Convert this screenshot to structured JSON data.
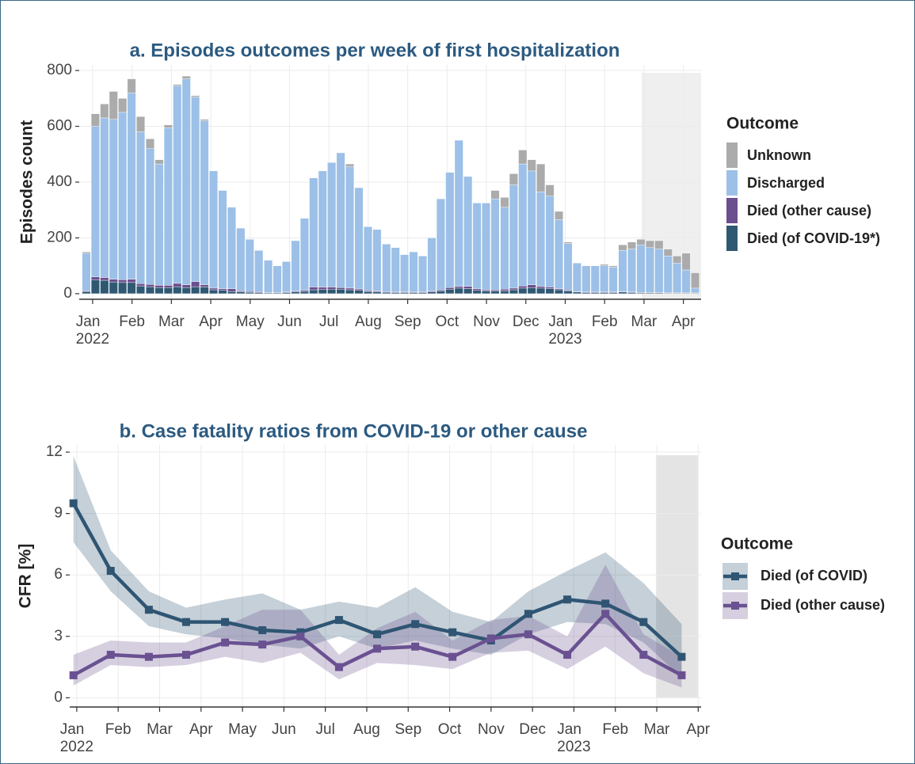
{
  "chart_data": [
    {
      "type": "bar",
      "stacked": true,
      "title": "a. Episodes outcomes per week of first hospitalization",
      "y_label": "Episodes count",
      "legend_title": "Outcome",
      "x": [
        -0.16,
        0.07,
        0.3,
        0.53,
        0.76,
        0.99,
        1.22,
        1.46,
        1.69,
        1.92,
        2.15,
        2.38,
        2.61,
        2.84,
        3.07,
        3.3,
        3.53,
        3.76,
        3.99,
        4.22,
        4.46,
        4.69,
        4.92,
        5.15,
        5.38,
        5.61,
        5.84,
        6.07,
        6.3,
        6.53,
        6.76,
        6.99,
        7.22,
        7.46,
        7.69,
        7.92,
        8.15,
        8.38,
        8.61,
        8.84,
        9.07,
        9.3,
        9.53,
        9.76,
        9.99,
        10.22,
        10.46,
        10.69,
        10.92,
        11.15,
        11.38,
        11.61,
        11.84,
        12.07,
        12.3,
        12.53,
        12.76,
        12.99,
        13.22,
        13.46,
        13.69,
        13.92,
        14.15,
        14.38,
        14.61,
        14.84,
        15.07,
        15.3
      ],
      "xlim": [
        -0.34,
        15.45
      ],
      "xticks": [
        {
          "value": 0,
          "label": "Jan\n2022"
        },
        {
          "value": 1,
          "label": "Feb"
        },
        {
          "value": 2,
          "label": "Mar"
        },
        {
          "value": 3,
          "label": "Apr"
        },
        {
          "value": 4,
          "label": "May"
        },
        {
          "value": 5,
          "label": "Jun"
        },
        {
          "value": 6,
          "label": "Jul"
        },
        {
          "value": 7,
          "label": "Aug"
        },
        {
          "value": 8,
          "label": "Sep"
        },
        {
          "value": 9,
          "label": "Oct"
        },
        {
          "value": 10,
          "label": "Nov"
        },
        {
          "value": 11,
          "label": "Dec"
        },
        {
          "value": 12,
          "label": "Jan\n2023"
        },
        {
          "value": 13,
          "label": "Feb"
        },
        {
          "value": 14,
          "label": "Mar"
        },
        {
          "value": 15,
          "label": "Apr"
        }
      ],
      "ylim": [
        -20,
        820
      ],
      "yticks": [
        0,
        200,
        400,
        600,
        800
      ],
      "grid": true,
      "series": [
        {
          "name": "Died (of COVID-19*)",
          "color": "#2f5873",
          "values": [
            8,
            50,
            48,
            42,
            40,
            40,
            28,
            25,
            22,
            22,
            25,
            22,
            25,
            24,
            14,
            12,
            8,
            6,
            5,
            4,
            3,
            3,
            4,
            6,
            8,
            14,
            15,
            16,
            16,
            14,
            12,
            8,
            6,
            5,
            4,
            4,
            4,
            4,
            6,
            10,
            16,
            20,
            18,
            12,
            10,
            10,
            10,
            14,
            20,
            22,
            20,
            18,
            14,
            10,
            6,
            4,
            4,
            4,
            4,
            6,
            4,
            3,
            3,
            3,
            2,
            2,
            2,
            2
          ]
        },
        {
          "name": "Died (other cause)",
          "color": "#6c4f8e",
          "values": [
            2,
            10,
            10,
            10,
            10,
            12,
            8,
            8,
            8,
            8,
            12,
            10,
            18,
            8,
            6,
            6,
            10,
            4,
            3,
            3,
            2,
            2,
            2,
            3,
            4,
            10,
            8,
            8,
            6,
            6,
            5,
            3,
            3,
            2,
            2,
            2,
            2,
            2,
            3,
            4,
            6,
            6,
            8,
            6,
            4,
            4,
            6,
            6,
            8,
            10,
            6,
            6,
            4,
            3,
            2,
            2,
            2,
            2,
            2,
            2,
            2,
            2,
            2,
            2,
            2,
            2,
            2,
            1
          ]
        },
        {
          "name": "Discharged",
          "color": "#9cc0e7",
          "values": [
            135,
            540,
            572,
            573,
            600,
            668,
            544,
            487,
            435,
            565,
            708,
            738,
            662,
            588,
            420,
            352,
            292,
            225,
            187,
            148,
            115,
            95,
            109,
            181,
            258,
            391,
            417,
            446,
            483,
            435,
            363,
            229,
            221,
            171,
            159,
            134,
            144,
            129,
            191,
            326,
            413,
            524,
            394,
            307,
            311,
            326,
            294,
            370,
            437,
            408,
            339,
            326,
            247,
            167,
            102,
            94,
            94,
            94,
            89,
            147,
            154,
            170,
            160,
            155,
            131,
            106,
            81,
            17
          ]
        },
        {
          "name": "Unknown",
          "color": "#ababab",
          "values": [
            5,
            45,
            50,
            100,
            50,
            50,
            55,
            35,
            15,
            10,
            5,
            10,
            5,
            5,
            0,
            0,
            0,
            0,
            0,
            0,
            0,
            0,
            0,
            0,
            0,
            0,
            0,
            0,
            0,
            10,
            0,
            0,
            0,
            0,
            0,
            0,
            0,
            0,
            0,
            0,
            0,
            0,
            0,
            0,
            0,
            30,
            35,
            40,
            50,
            40,
            100,
            40,
            30,
            5,
            0,
            0,
            0,
            5,
            5,
            20,
            25,
            20,
            25,
            30,
            25,
            25,
            60,
            55
          ]
        }
      ]
    },
    {
      "type": "line",
      "title": "b. Case fatality ratios from COVID-19 or other cause",
      "y_label": "CFR [%]",
      "legend_title": "Outcome",
      "x": [
        -0.08,
        0.82,
        1.74,
        2.64,
        3.58,
        4.48,
        5.4,
        6.33,
        7.25,
        8.17,
        9.07,
        10.0,
        10.9,
        11.84,
        12.76,
        13.68,
        14.6
      ],
      "xlim": [
        -0.17,
        15.07
      ],
      "xticks": [
        {
          "value": 0,
          "label": "Jan\n2022"
        },
        {
          "value": 1,
          "label": "Feb"
        },
        {
          "value": 2,
          "label": "Mar"
        },
        {
          "value": 3,
          "label": "Apr"
        },
        {
          "value": 4,
          "label": "May"
        },
        {
          "value": 5,
          "label": "Jun"
        },
        {
          "value": 6,
          "label": "Jul"
        },
        {
          "value": 7,
          "label": "Aug"
        },
        {
          "value": 8,
          "label": "Sep"
        },
        {
          "value": 9,
          "label": "Oct"
        },
        {
          "value": 10,
          "label": "Nov"
        },
        {
          "value": 11,
          "label": "Dec"
        },
        {
          "value": 12,
          "label": "Jan\n2023"
        },
        {
          "value": 13,
          "label": "Feb"
        },
        {
          "value": 14,
          "label": "Mar"
        },
        {
          "value": 15,
          "label": "Apr"
        }
      ],
      "ylim": [
        -0.45,
        12.35
      ],
      "yticks": [
        0,
        3,
        6,
        9,
        12
      ],
      "grid": true,
      "series": [
        {
          "name": "Died (of COVID)",
          "color": "#2f5573",
          "values": [
            9.5,
            6.2,
            4.3,
            3.7,
            3.7,
            3.3,
            3.2,
            3.8,
            3.1,
            3.6,
            3.2,
            2.8,
            4.1,
            4.8,
            4.6,
            3.7,
            2.0
          ],
          "lower": [
            7.6,
            5.2,
            3.5,
            3.1,
            2.9,
            2.6,
            2.4,
            3.0,
            2.4,
            2.8,
            2.4,
            2.1,
            3.1,
            3.7,
            3.6,
            2.7,
            1.0
          ],
          "upper": [
            11.8,
            7.2,
            5.2,
            4.4,
            4.8,
            5.1,
            4.3,
            4.7,
            4.4,
            5.4,
            4.2,
            3.7,
            5.2,
            6.2,
            7.1,
            5.6,
            3.6
          ]
        },
        {
          "name": "Died (other cause)",
          "color": "#6a5191",
          "values": [
            1.1,
            2.1,
            2.0,
            2.1,
            2.7,
            2.6,
            3.0,
            1.5,
            2.4,
            2.5,
            2.0,
            2.9,
            3.1,
            2.1,
            4.1,
            2.1,
            1.1
          ],
          "lower": [
            0.6,
            1.6,
            1.5,
            1.6,
            2.0,
            1.7,
            2.2,
            0.9,
            1.7,
            1.6,
            1.4,
            2.2,
            2.3,
            1.4,
            2.5,
            1.2,
            0.5
          ],
          "upper": [
            2.1,
            2.8,
            2.7,
            2.7,
            3.5,
            4.3,
            4.3,
            2.1,
            3.4,
            4.2,
            2.8,
            3.8,
            4.0,
            3.0,
            6.5,
            3.1,
            2.0
          ]
        }
      ]
    }
  ]
}
